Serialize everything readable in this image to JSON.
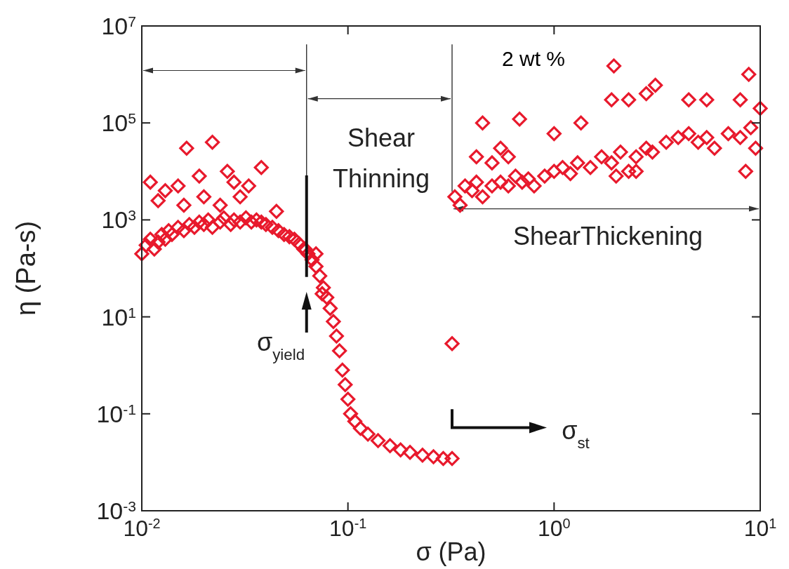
{
  "chart_data": {
    "type": "scatter",
    "xlabel": "σ (Pa)",
    "ylabel": "η (Pa-s)",
    "log": "xy",
    "marker": "diamond",
    "grid": false,
    "xlim": [
      0.01,
      10
    ],
    "ylim": [
      0.001,
      10000000
    ],
    "xticks": [
      {
        "value": 0.01,
        "label": "10$^{-2}$"
      },
      {
        "value": 0.1,
        "label": "10$^{-1}$"
      },
      {
        "value": 1,
        "label": "10$^{0}$"
      },
      {
        "value": 10,
        "label": "10$^{1}$"
      }
    ],
    "yticks": [
      {
        "value": 0.001,
        "label": "10$^{-3}$"
      },
      {
        "value": 0.1,
        "label": "10$^{-1}$"
      },
      {
        "value": 10,
        "label": "10$^{1}$"
      },
      {
        "value": 1000,
        "label": "10$^{3}$"
      },
      {
        "value": 100000,
        "label": "10$^{5}$"
      },
      {
        "value": 10000000,
        "label": "10$^{7}$"
      }
    ],
    "series": [
      {
        "color": "#e8192c",
        "x": [
          0.01,
          0.0105,
          0.011,
          0.0115,
          0.012,
          0.0125,
          0.013,
          0.0135,
          0.014,
          0.015,
          0.016,
          0.017,
          0.018,
          0.019,
          0.02,
          0.021,
          0.022,
          0.024,
          0.025,
          0.027,
          0.028,
          0.03,
          0.032,
          0.034,
          0.036,
          0.038,
          0.04,
          0.043,
          0.046,
          0.049,
          0.052,
          0.055,
          0.058,
          0.061,
          0.064,
          0.067,
          0.07,
          0.073,
          0.076,
          0.079,
          0.082,
          0.085,
          0.088,
          0.091,
          0.094,
          0.097,
          0.1,
          0.103,
          0.108,
          0.115,
          0.125,
          0.14,
          0.16,
          0.18,
          0.2,
          0.23,
          0.26,
          0.29,
          0.32,
          0.011,
          0.013,
          0.015,
          0.0165,
          0.022,
          0.019,
          0.026,
          0.028,
          0.033,
          0.038,
          0.012,
          0.02,
          0.024,
          0.03,
          0.016,
          0.045,
          0.062,
          0.07,
          0.075,
          0.32,
          0.33,
          0.35,
          0.37,
          0.4,
          0.42,
          0.45,
          0.5,
          0.55,
          0.6,
          0.65,
          0.7,
          0.75,
          0.8,
          0.9,
          1.0,
          1.1,
          1.2,
          1.3,
          1.5,
          1.7,
          1.9,
          2.1,
          2.3,
          2.5,
          2.8,
          3.0,
          3.5,
          4.0,
          4.5,
          5.0,
          5.5,
          6.0,
          7.0,
          8.0,
          9.0,
          10,
          0.45,
          0.68,
          0.42,
          0.55,
          1.0,
          1.35,
          1.95,
          1.9,
          2.3,
          2.8,
          3.1,
          4.5,
          5.5,
          8.8,
          8.0,
          9.5,
          8.5,
          2.0,
          2.5,
          0.5,
          0.6
        ],
        "values": [
          200,
          300,
          400,
          250,
          350,
          500,
          400,
          600,
          500,
          700,
          600,
          800,
          700,
          900,
          800,
          1000,
          700,
          900,
          1100,
          800,
          1000,
          900,
          1100,
          900,
          1000,
          900,
          800,
          700,
          600,
          500,
          450,
          400,
          320,
          250,
          200,
          150,
          110,
          70,
          40,
          25,
          15,
          8,
          4,
          2,
          0.8,
          0.4,
          0.2,
          0.1,
          0.07,
          0.05,
          0.038,
          0.028,
          0.022,
          0.018,
          0.016,
          0.014,
          0.013,
          0.012,
          0.012,
          6000,
          4000,
          5000,
          30000,
          40000,
          8000,
          10000,
          6000,
          5000,
          12000,
          2500,
          3000,
          2000,
          3000,
          2000,
          1500,
          250,
          200,
          30,
          2.8,
          3000,
          2000,
          5000,
          4000,
          6000,
          3000,
          5000,
          6000,
          5000,
          8000,
          6000,
          7000,
          5000,
          8000,
          10000,
          12000,
          9000,
          15000,
          12000,
          20000,
          15000,
          25000,
          10000,
          20000,
          30000,
          25000,
          40000,
          50000,
          60000,
          40000,
          50000,
          30000,
          60000,
          50000,
          80000,
          200000,
          100000,
          120000,
          20000,
          30000,
          60000,
          100000,
          1500000,
          300000,
          300000,
          400000,
          600000,
          300000,
          300000,
          1000000,
          300000,
          30000,
          10000,
          8000,
          10000,
          15000,
          20000
        ]
      }
    ],
    "ref_lines": [
      {
        "axis": "x",
        "value": 0.063,
        "color": "#222222",
        "line_style": "solid"
      },
      {
        "axis": "x",
        "value": 0.32,
        "color": "#222222",
        "line_style": "solid"
      }
    ],
    "annotations": [
      "2 wt %",
      "Shear Thinning",
      "ShearThickening",
      "σ$_{yield}$",
      "σ$_{st}$"
    ]
  }
}
